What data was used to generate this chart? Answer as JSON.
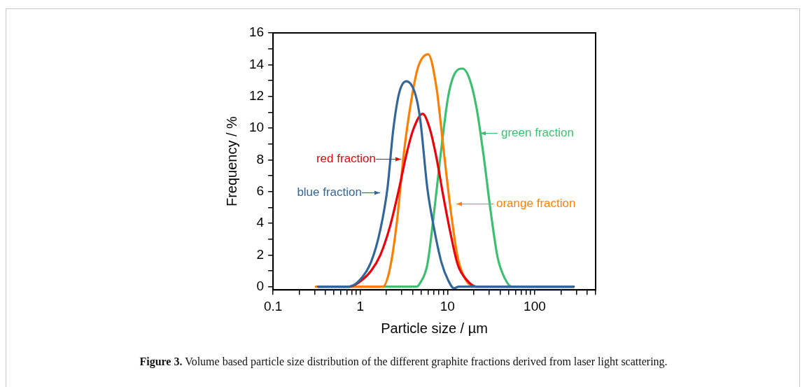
{
  "chart_data": {
    "type": "line",
    "xlabel": "Particle size / µm",
    "ylabel": "Frequency / %",
    "log": "x",
    "grid": false,
    "legend": false,
    "marker": "none",
    "line_style": "solid",
    "xlim": [
      0.1,
      500
    ],
    "xticks": [
      0.1,
      {
        "value": 0.2,
        "label": null
      },
      {
        "value": 0.3,
        "label": null
      },
      {
        "value": 0.4,
        "label": null
      },
      {
        "value": 0.5,
        "label": null
      },
      {
        "value": 0.6,
        "label": null
      },
      {
        "value": 0.7,
        "label": null
      },
      {
        "value": 0.8,
        "label": null
      },
      {
        "value": 0.9,
        "label": null
      },
      1,
      {
        "value": 2,
        "label": null
      },
      {
        "value": 3,
        "label": null
      },
      {
        "value": 4,
        "label": null
      },
      {
        "value": 5,
        "label": null
      },
      {
        "value": 6,
        "label": null
      },
      {
        "value": 7,
        "label": null
      },
      {
        "value": 8,
        "label": null
      },
      {
        "value": 9,
        "label": null
      },
      10,
      {
        "value": 20,
        "label": null
      },
      {
        "value": 30,
        "label": null
      },
      {
        "value": 40,
        "label": null
      },
      {
        "value": 50,
        "label": null
      },
      {
        "value": 60,
        "label": null
      },
      {
        "value": 70,
        "label": null
      },
      {
        "value": 80,
        "label": null
      },
      {
        "value": 90,
        "label": null
      },
      100,
      {
        "value": 200,
        "label": null
      },
      {
        "value": 300,
        "label": null
      },
      {
        "value": 400,
        "label": null
      },
      {
        "value": 500,
        "label": null
      }
    ],
    "ylim": [
      -0.2,
      16
    ],
    "yticks": [
      0,
      {
        "value": 1,
        "label": null
      },
      2,
      {
        "value": 3,
        "label": null
      },
      4,
      {
        "value": 5,
        "label": null
      },
      6,
      {
        "value": 7,
        "label": null
      },
      8,
      {
        "value": 9,
        "label": null
      },
      10,
      {
        "value": 11,
        "label": null
      },
      12,
      {
        "value": 13,
        "label": null
      },
      14,
      {
        "value": 15,
        "label": null
      },
      16
    ],
    "series": [
      {
        "color": "#3dbf6f",
        "x": [
          0.33,
          4.45,
          4.88,
          5.88,
          7.06,
          8.5,
          10.2,
          12.3,
          14.9,
          17.9,
          21.5,
          25.9,
          31.2,
          37.6,
          45.3,
          54.5,
          280
        ],
        "values": [
          0,
          0,
          0.25,
          1.4,
          4.8,
          8.7,
          12.0,
          13.5,
          13.75,
          13.1,
          11.3,
          8.3,
          4.8,
          1.85,
          0.54,
          0,
          0
        ]
      },
      {
        "color": "#ff8000",
        "x": [
          0.31,
          1.81,
          2.18,
          2.62,
          3.16,
          3.81,
          4.58,
          6.0,
          7.5,
          9.0,
          10.9,
          13.1,
          15.8,
          20.2,
          280
        ],
        "values": [
          0,
          0,
          1.1,
          4.0,
          8.4,
          11.6,
          13.8,
          14.65,
          12.5,
          8.7,
          4.8,
          1.85,
          0.54,
          0,
          0
        ]
      },
      {
        "color": "#e8000b",
        "x": [
          0.33,
          0.75,
          0.98,
          1.33,
          1.7,
          2.18,
          2.79,
          3.37,
          4.05,
          5.19,
          6.24,
          7.5,
          9.0,
          10.9,
          13.1,
          16.8,
          21.5,
          280
        ],
        "values": [
          0,
          0,
          0.3,
          1.0,
          2.0,
          3.75,
          6.2,
          8.3,
          9.9,
          10.9,
          10.0,
          8.1,
          5.65,
          3.3,
          1.4,
          0.4,
          0,
          0
        ]
      },
      {
        "color": "#336699",
        "x": [
          0.33,
          0.72,
          0.98,
          1.33,
          1.7,
          2.05,
          2.39,
          2.79,
          3.37,
          4.3,
          4.88,
          5.88,
          7.06,
          8.5,
          10.2,
          11.9,
          13.5,
          280
        ],
        "values": [
          0,
          0,
          0.4,
          1.56,
          3.6,
          6.2,
          9.9,
          12.2,
          12.95,
          12.1,
          10.5,
          6.2,
          3.6,
          1.56,
          0.4,
          -0.1,
          0,
          0
        ]
      }
    ],
    "annotations": [
      "green fraction",
      "orange fraction",
      "red fraction",
      "blue fraction",
      "Figure 3. Volume based particle size distribution of the different graphite fractions derived from laser light scattering."
    ]
  }
}
